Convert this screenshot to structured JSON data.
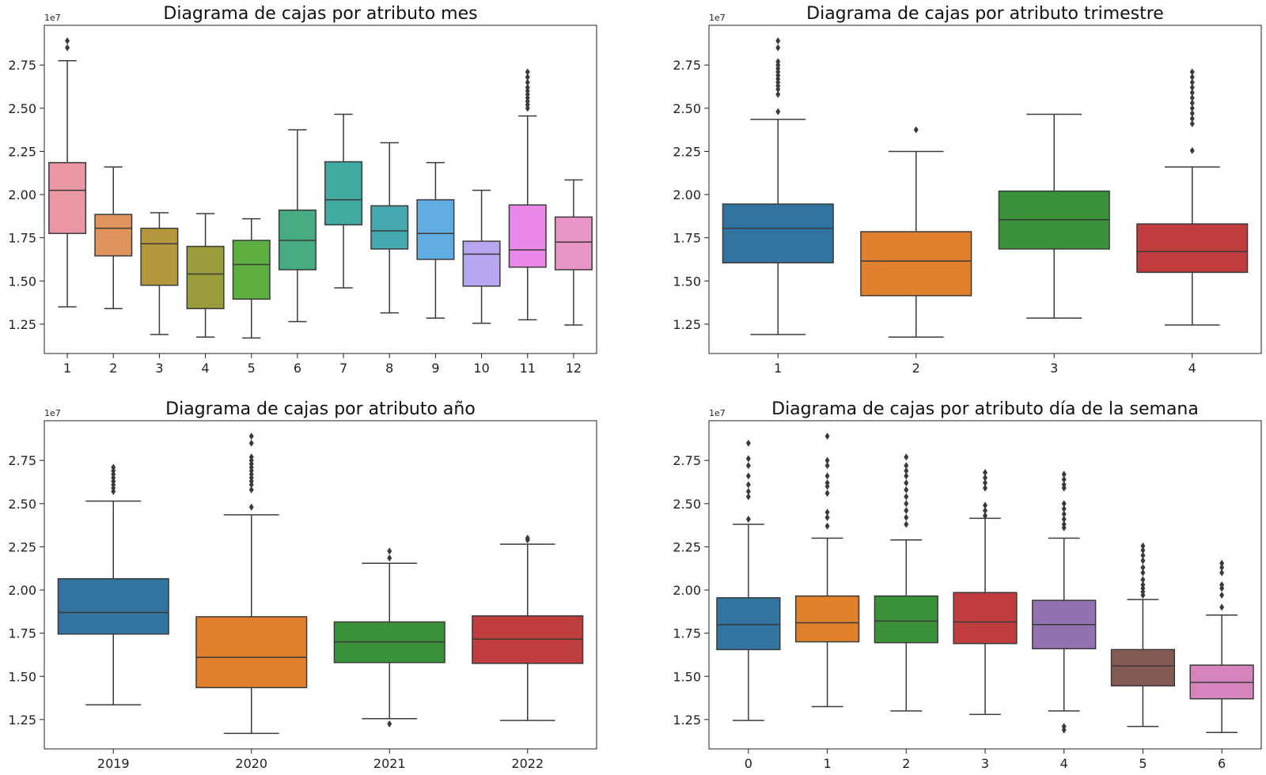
{
  "chart_data": [
    {
      "type": "box",
      "title": "Diagrama de cajas por atributo mes",
      "y_multiplier_label": "1e7",
      "ylim": [
        1.08,
        2.98
      ],
      "yticks": [
        1.25,
        1.5,
        1.75,
        2.0,
        2.25,
        2.5,
        2.75
      ],
      "ytick_labels": [
        "1.25",
        "1.50",
        "1.75",
        "2.00",
        "2.25",
        "2.50",
        "2.75"
      ],
      "categories": [
        "1",
        "2",
        "3",
        "4",
        "5",
        "6",
        "7",
        "8",
        "9",
        "10",
        "11",
        "12"
      ],
      "colors": [
        "#ea96a3",
        "#e0935c",
        "#b5973e",
        "#9b9d3c",
        "#5eaf42",
        "#48ac82",
        "#41aba1",
        "#43a9ae",
        "#60ade3",
        "#b7a5ef",
        "#ea88e8",
        "#e995c8"
      ],
      "boxes": [
        {
          "whislo": 1.35,
          "q1": 1.775,
          "med": 2.025,
          "q3": 2.185,
          "whishi": 2.775,
          "fliers": [
            2.85,
            2.89
          ]
        },
        {
          "whislo": 1.34,
          "q1": 1.645,
          "med": 1.805,
          "q3": 1.885,
          "whishi": 2.16,
          "fliers": []
        },
        {
          "whislo": 1.19,
          "q1": 1.475,
          "med": 1.715,
          "q3": 1.805,
          "whishi": 1.895,
          "fliers": []
        },
        {
          "whislo": 1.175,
          "q1": 1.34,
          "med": 1.54,
          "q3": 1.7,
          "whishi": 1.89,
          "fliers": []
        },
        {
          "whislo": 1.17,
          "q1": 1.395,
          "med": 1.595,
          "q3": 1.735,
          "whishi": 1.86,
          "fliers": []
        },
        {
          "whislo": 1.265,
          "q1": 1.565,
          "med": 1.735,
          "q3": 1.91,
          "whishi": 2.375,
          "fliers": []
        },
        {
          "whislo": 1.46,
          "q1": 1.825,
          "med": 1.97,
          "q3": 2.19,
          "whishi": 2.465,
          "fliers": []
        },
        {
          "whislo": 1.315,
          "q1": 1.685,
          "med": 1.79,
          "q3": 1.935,
          "whishi": 2.3,
          "fliers": []
        },
        {
          "whislo": 1.285,
          "q1": 1.625,
          "med": 1.775,
          "q3": 1.97,
          "whishi": 2.185,
          "fliers": []
        },
        {
          "whislo": 1.255,
          "q1": 1.47,
          "med": 1.655,
          "q3": 1.73,
          "whishi": 2.025,
          "fliers": []
        },
        {
          "whislo": 1.275,
          "q1": 1.58,
          "med": 1.68,
          "q3": 1.94,
          "whishi": 2.455,
          "fliers": [
            2.5,
            2.52,
            2.54,
            2.56,
            2.58,
            2.6,
            2.62,
            2.65,
            2.68,
            2.71
          ]
        },
        {
          "whislo": 1.245,
          "q1": 1.565,
          "med": 1.725,
          "q3": 1.87,
          "whishi": 2.085,
          "fliers": []
        }
      ]
    },
    {
      "type": "box",
      "title": "Diagrama de cajas por atributo trimestre",
      "y_multiplier_label": "1e7",
      "ylim": [
        1.08,
        2.98
      ],
      "yticks": [
        1.25,
        1.5,
        1.75,
        2.0,
        2.25,
        2.5,
        2.75
      ],
      "ytick_labels": [
        "1.25",
        "1.50",
        "1.75",
        "2.00",
        "2.25",
        "2.50",
        "2.75"
      ],
      "categories": [
        "1",
        "2",
        "3",
        "4"
      ],
      "colors": [
        "#3274a1",
        "#e1812c",
        "#3a923a",
        "#c03d3e"
      ],
      "boxes": [
        {
          "whislo": 1.19,
          "q1": 1.605,
          "med": 1.805,
          "q3": 1.945,
          "whishi": 2.435,
          "fliers": [
            2.48,
            2.58,
            2.61,
            2.63,
            2.65,
            2.67,
            2.69,
            2.71,
            2.73,
            2.75,
            2.77,
            2.85,
            2.89
          ]
        },
        {
          "whislo": 1.175,
          "q1": 1.415,
          "med": 1.615,
          "q3": 1.785,
          "whishi": 2.25,
          "fliers": [
            2.375
          ]
        },
        {
          "whislo": 1.285,
          "q1": 1.685,
          "med": 1.855,
          "q3": 2.02,
          "whishi": 2.465,
          "fliers": []
        },
        {
          "whislo": 1.245,
          "q1": 1.55,
          "med": 1.67,
          "q3": 1.83,
          "whishi": 2.16,
          "fliers": [
            2.255,
            2.41,
            2.44,
            2.47,
            2.5,
            2.53,
            2.56,
            2.59,
            2.62,
            2.65,
            2.68,
            2.71
          ]
        }
      ]
    },
    {
      "type": "box",
      "title": "Diagrama de cajas por atributo año",
      "y_multiplier_label": "1e7",
      "ylim": [
        1.08,
        2.98
      ],
      "yticks": [
        1.25,
        1.5,
        1.75,
        2.0,
        2.25,
        2.5,
        2.75
      ],
      "ytick_labels": [
        "1.25",
        "1.50",
        "1.75",
        "2.00",
        "2.25",
        "2.50",
        "2.75"
      ],
      "categories": [
        "2019",
        "2020",
        "2021",
        "2022"
      ],
      "colors": [
        "#3274a1",
        "#e1812c",
        "#3a923a",
        "#c03d3e"
      ],
      "boxes": [
        {
          "whislo": 1.335,
          "q1": 1.745,
          "med": 1.87,
          "q3": 2.065,
          "whishi": 2.515,
          "fliers": [
            2.57,
            2.59,
            2.61,
            2.63,
            2.65,
            2.67,
            2.69,
            2.71
          ]
        },
        {
          "whislo": 1.17,
          "q1": 1.435,
          "med": 1.61,
          "q3": 1.845,
          "whishi": 2.435,
          "fliers": [
            2.48,
            2.58,
            2.61,
            2.63,
            2.65,
            2.67,
            2.69,
            2.71,
            2.73,
            2.75,
            2.77,
            2.85,
            2.89
          ]
        },
        {
          "whislo": 1.255,
          "q1": 1.58,
          "med": 1.7,
          "q3": 1.815,
          "whishi": 2.155,
          "fliers": [
            1.225,
            2.185,
            2.225
          ]
        },
        {
          "whislo": 1.245,
          "q1": 1.575,
          "med": 1.715,
          "q3": 1.85,
          "whishi": 2.265,
          "fliers": [
            2.29,
            2.3
          ]
        }
      ]
    },
    {
      "type": "box",
      "title": "Diagrama de cajas por atributo día de la semana",
      "y_multiplier_label": "1e7",
      "ylim": [
        1.08,
        2.98
      ],
      "yticks": [
        1.25,
        1.5,
        1.75,
        2.0,
        2.25,
        2.5,
        2.75
      ],
      "ytick_labels": [
        "1.25",
        "1.50",
        "1.75",
        "2.00",
        "2.25",
        "2.50",
        "2.75"
      ],
      "categories": [
        "0",
        "1",
        "2",
        "3",
        "4",
        "5",
        "6"
      ],
      "colors": [
        "#3274a1",
        "#e1812c",
        "#3a923a",
        "#c03d3e",
        "#9372b2",
        "#845b53",
        "#d684bd"
      ],
      "boxes": [
        {
          "whislo": 1.245,
          "q1": 1.655,
          "med": 1.8,
          "q3": 1.955,
          "whishi": 2.38,
          "fliers": [
            2.41,
            2.54,
            2.57,
            2.61,
            2.66,
            2.72,
            2.76,
            2.85
          ]
        },
        {
          "whislo": 1.325,
          "q1": 1.7,
          "med": 1.81,
          "q3": 1.965,
          "whishi": 2.3,
          "fliers": [
            2.37,
            2.42,
            2.45,
            2.56,
            2.6,
            2.62,
            2.66,
            2.72,
            2.75,
            2.89
          ]
        },
        {
          "whislo": 1.3,
          "q1": 1.695,
          "med": 1.82,
          "q3": 1.965,
          "whishi": 2.29,
          "fliers": [
            2.38,
            2.42,
            2.46,
            2.5,
            2.54,
            2.58,
            2.62,
            2.66,
            2.69,
            2.72,
            2.77
          ]
        },
        {
          "whislo": 1.28,
          "q1": 1.69,
          "med": 1.815,
          "q3": 1.985,
          "whishi": 2.415,
          "fliers": [
            2.43,
            2.46,
            2.49,
            2.59,
            2.62,
            2.65,
            2.68
          ]
        },
        {
          "whislo": 1.3,
          "q1": 1.66,
          "med": 1.8,
          "q3": 1.94,
          "whishi": 2.3,
          "fliers": [
            1.19,
            1.21,
            2.36,
            2.38,
            2.41,
            2.44,
            2.47,
            2.5,
            2.59,
            2.61,
            2.64,
            2.67
          ]
        },
        {
          "whislo": 1.21,
          "q1": 1.445,
          "med": 1.56,
          "q3": 1.655,
          "whishi": 1.945,
          "fliers": [
            1.97,
            1.99,
            2.01,
            2.03,
            2.06,
            2.1,
            2.13,
            2.17,
            2.2,
            2.23,
            2.255
          ]
        },
        {
          "whislo": 1.175,
          "q1": 1.37,
          "med": 1.465,
          "q3": 1.565,
          "whishi": 1.855,
          "fliers": [
            1.9,
            1.97,
            2.01,
            2.03,
            2.1,
            2.13,
            2.155
          ]
        }
      ]
    }
  ]
}
